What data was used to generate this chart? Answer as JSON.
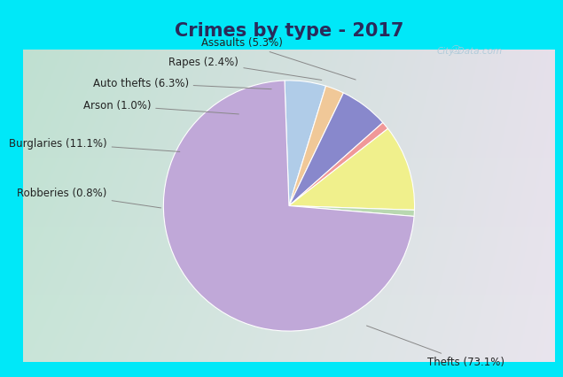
{
  "title": "Crimes by type - 2017",
  "labels": [
    "Thefts",
    "Burglaries",
    "Auto thefts",
    "Assaults",
    "Rapes",
    "Arson",
    "Robberies"
  ],
  "values": [
    73.1,
    11.1,
    6.3,
    5.3,
    2.4,
    1.0,
    0.8
  ],
  "colors": [
    "#c0a8d8",
    "#f0f08c",
    "#8888cc",
    "#b0cce8",
    "#f0c898",
    "#f09898",
    "#b8d8b0"
  ],
  "label_texts": [
    "Thefts (73.1%)",
    "Burglaries (11.1%)",
    "Auto thefts (6.3%)",
    "Assaults (5.3%)",
    "Rapes (2.4%)",
    "Arson (1.0%)",
    "Robberies (0.8%)"
  ],
  "title_fontsize": 15,
  "cyan_color": "#00e8f8",
  "title_color": "#2a2a5a",
  "watermark_text": "City-Data.com",
  "watermark_color": "#aac8d8",
  "label_fontsize": 8.5,
  "label_color": "#222222",
  "line_color": "#888888",
  "bg_grad_top": "#c0dcd0",
  "bg_grad_bottom": "#dce8e8",
  "bg_grad_right": "#e0dce8"
}
